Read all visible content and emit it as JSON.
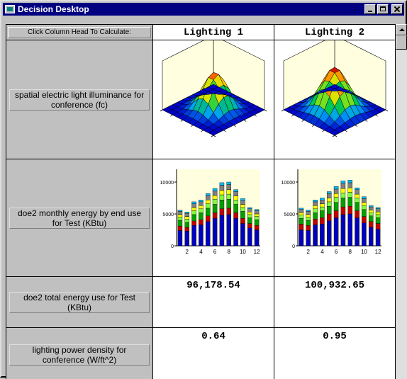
{
  "window": {
    "title": "Decision Desktop"
  },
  "table": {
    "header_hint": "Click Column Head To Calculate:",
    "columns": [
      "Lighting 1",
      "Lighting 2"
    ],
    "rows": [
      {
        "label": "spatial electric light illuminance for conference (fc)",
        "type": "surface"
      },
      {
        "label": "doe2 monthly energy by end use for Test (KBtu)",
        "type": "bar"
      },
      {
        "label": "doe2 total energy use for Test (KBtu)",
        "values": [
          "96,178.54",
          "100,932.65"
        ]
      },
      {
        "label": "lighting power density for conference (W/ft^2)",
        "values": [
          "0.64",
          "0.95"
        ]
      }
    ]
  },
  "chart_data": [
    {
      "type": "bar",
      "name": "Lighting 1 monthly energy",
      "x": [
        1,
        2,
        3,
        4,
        5,
        6,
        7,
        8,
        9,
        10,
        11,
        12
      ],
      "xticks": [
        "2",
        "4",
        "6",
        "8",
        "10",
        "12"
      ],
      "yticks": [
        "0",
        "5000",
        "10000"
      ],
      "ylim": [
        0,
        12000
      ],
      "stack_colors": [
        "#0000c0",
        "#c00000",
        "#00a000",
        "#80ff40",
        "#ffff00",
        "#808080",
        "#00c0ff"
      ],
      "series": [
        {
          "values": [
            2400,
            2300,
            3200,
            3300,
            3800,
            4300,
            4800,
            4900,
            4300,
            3500,
            2800,
            2500
          ]
        },
        {
          "values": [
            700,
            600,
            700,
            800,
            900,
            900,
            1000,
            1000,
            900,
            800,
            700,
            700
          ]
        },
        {
          "values": [
            900,
            800,
            1000,
            1100,
            1200,
            1300,
            1400,
            1400,
            1300,
            1100,
            900,
            900
          ]
        },
        {
          "values": [
            500,
            500,
            600,
            600,
            700,
            800,
            800,
            800,
            700,
            600,
            500,
            500
          ]
        },
        {
          "values": [
            400,
            400,
            500,
            500,
            600,
            600,
            700,
            700,
            600,
            500,
            400,
            400
          ]
        },
        {
          "values": [
            500,
            500,
            600,
            600,
            700,
            700,
            800,
            800,
            700,
            600,
            500,
            500
          ]
        },
        {
          "values": [
            200,
            200,
            300,
            300,
            300,
            400,
            400,
            400,
            300,
            300,
            200,
            200
          ]
        }
      ]
    },
    {
      "type": "bar",
      "name": "Lighting 2 monthly energy",
      "x": [
        1,
        2,
        3,
        4,
        5,
        6,
        7,
        8,
        9,
        10,
        11,
        12
      ],
      "xticks": [
        "2",
        "4",
        "6",
        "8",
        "10",
        "12"
      ],
      "yticks": [
        "0",
        "5000",
        "10000"
      ],
      "ylim": [
        0,
        12000
      ],
      "stack_colors": [
        "#0000c0",
        "#c00000",
        "#00a000",
        "#80ff40",
        "#ffff00",
        "#808080",
        "#00c0ff"
      ],
      "series": [
        {
          "values": [
            2500,
            2400,
            3300,
            3400,
            3900,
            4400,
            4900,
            5000,
            4400,
            3600,
            2900,
            2600
          ]
        },
        {
          "values": [
            900,
            800,
            900,
            1000,
            1100,
            1100,
            1200,
            1200,
            1100,
            1000,
            900,
            900
          ]
        },
        {
          "values": [
            900,
            800,
            1000,
            1100,
            1200,
            1300,
            1400,
            1400,
            1300,
            1100,
            900,
            900
          ]
        },
        {
          "values": [
            500,
            500,
            600,
            600,
            700,
            800,
            800,
            800,
            700,
            600,
            500,
            500
          ]
        },
        {
          "values": [
            400,
            400,
            500,
            500,
            600,
            600,
            700,
            700,
            600,
            500,
            400,
            400
          ]
        },
        {
          "values": [
            500,
            500,
            600,
            600,
            700,
            700,
            800,
            800,
            700,
            600,
            500,
            500
          ]
        },
        {
          "values": [
            200,
            200,
            300,
            300,
            300,
            400,
            400,
            400,
            300,
            300,
            200,
            200
          ]
        }
      ]
    }
  ]
}
